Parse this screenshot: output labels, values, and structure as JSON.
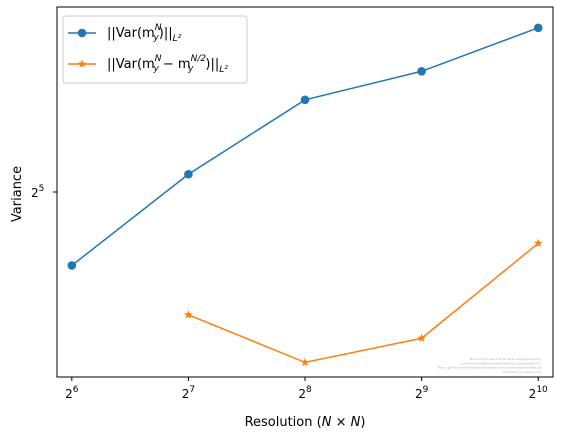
{
  "chart_data": {
    "type": "line",
    "xlabel": "Resolution (N × N)",
    "ylabel": "Variance",
    "x_scale": "log2",
    "y_scale": "log2",
    "x": [
      64,
      128,
      256,
      512,
      1024
    ],
    "x_tick_labels": [
      {
        "base": "2",
        "exp": "6"
      },
      {
        "base": "2",
        "exp": "7"
      },
      {
        "base": "2",
        "exp": "8"
      },
      {
        "base": "2",
        "exp": "9"
      },
      {
        "base": "2",
        "exp": "10"
      }
    ],
    "y_tick_labels": [
      {
        "value": 32,
        "base": "2",
        "exp": "5"
      }
    ],
    "xlim": [
      58.6,
      1118
    ],
    "ylim": [
      16.0,
      64.0
    ],
    "grid": false,
    "legend_position": "upper left",
    "series": [
      {
        "name": "||Var(m_y^N)||_{L^2}",
        "color": "#1f77b4",
        "marker": "circle",
        "x": [
          64,
          128,
          256,
          512,
          1024
        ],
        "y": [
          24.3,
          34.2,
          45.2,
          50.3,
          59.2
        ]
      },
      {
        "name": "||Var(m_y^N − m_y^{N/2})||_{L^2}",
        "color": "#ff7f0e",
        "marker": "star",
        "x": [
          128,
          256,
          512,
          1024
        ],
        "y": [
          20.2,
          16.9,
          18.5,
          26.4
        ]
      }
    ],
    "legend": [
      {
        "text": "||Var(m",
        "sub": "y",
        "sup": "N",
        "tail": ")||",
        "norm": "L²"
      },
      {
        "text": "||Var(m",
        "sub": "y",
        "sup": "N",
        "mid": " − m",
        "sub2": "y",
        "sup2": "N/2",
        "tail": ")||",
        "norm": "L²"
      }
    ],
    "watermark": [
      "By Kirill Ilich Lar & DTRI (kirill.s.lin@gmail.com)",
      "Commit: 93048f9a8ab4d0e0dfa071cac4b45bd81413",
      "Repo: github.com/kirill/pdcmeta-statistical-solutions-experiments.git",
      "Produced: 1c_app.py 019"
    ]
  }
}
